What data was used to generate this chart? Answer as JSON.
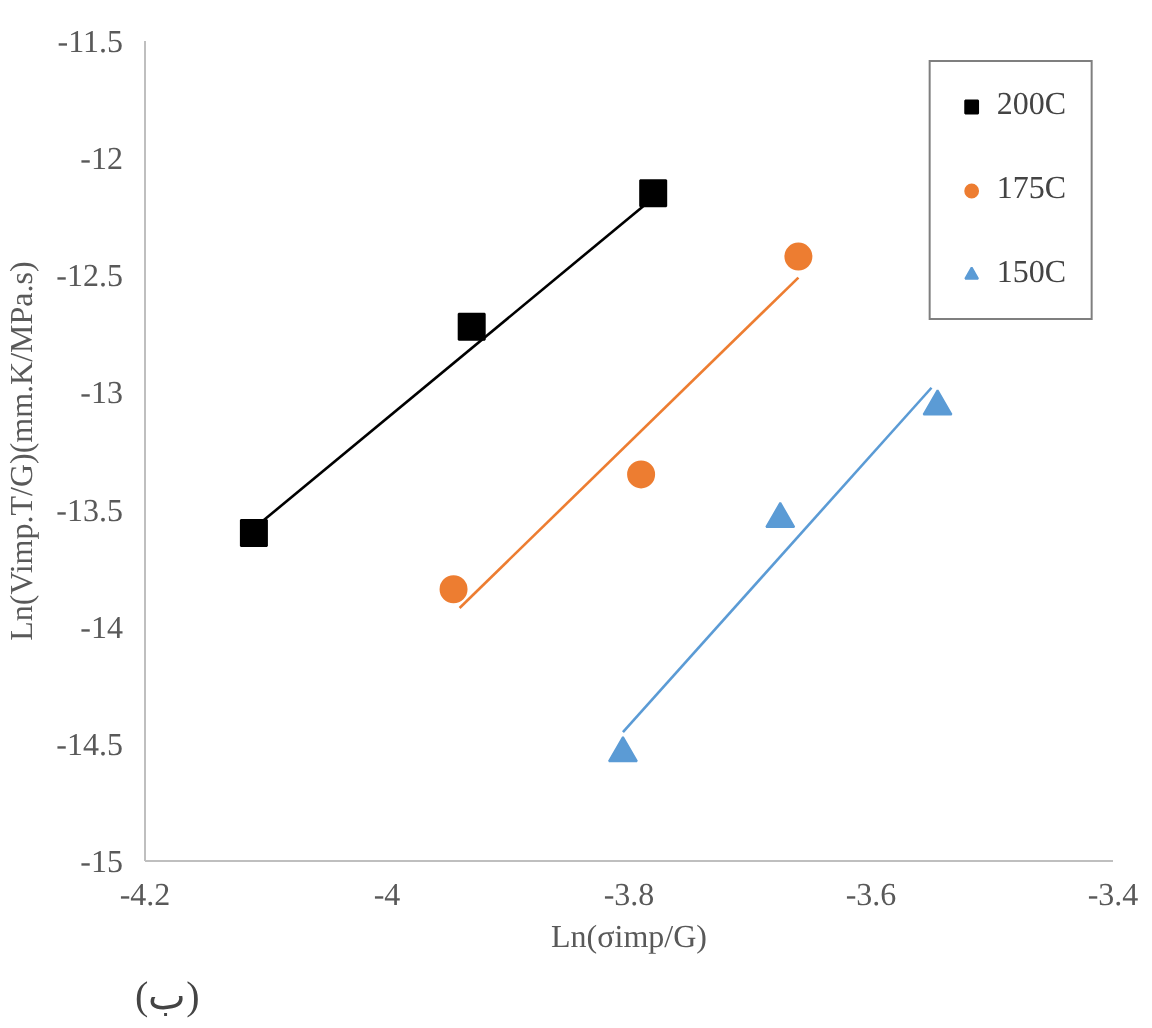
{
  "chart_data": {
    "type": "scatter",
    "xlabel": "Ln(σimp/G)",
    "ylabel": "Ln(Vimp.T/G)(mm.K/MPa.s)",
    "xlim": [
      -4.2,
      -3.4
    ],
    "xticks": [
      -4.2,
      -4,
      -3.8,
      -3.6,
      -3.4
    ],
    "ylim": [
      -15,
      -11.5
    ],
    "yticks": [
      -15,
      -14.5,
      -14,
      -13.5,
      -13,
      -12.5,
      -12,
      -11.5
    ],
    "grid": false,
    "legend": "top right",
    "annotations": [
      "(ب)"
    ],
    "series": [
      {
        "name": "200C",
        "color": "#000000",
        "marker": "square",
        "x": [
          -4.11,
          -3.93,
          -3.78
        ],
        "values": [
          -13.6,
          -12.72,
          -12.15
        ]
      },
      {
        "name": "175C",
        "color": "#ed7d31",
        "marker": "circle",
        "x": [
          -3.945,
          -3.79,
          -3.66
        ],
        "values": [
          -13.84,
          -13.35,
          -12.42
        ]
      },
      {
        "name": "150C",
        "color": "#5b9bd5",
        "marker": "triangle",
        "x": [
          -3.805,
          -3.675,
          -3.545
        ],
        "values": [
          -14.54,
          -13.54,
          -13.06
        ]
      },
      {
        "type": "line",
        "color": "#000000",
        "x": [
          -4.11,
          -3.78
        ],
        "values": [
          -13.58,
          -12.17
        ]
      },
      {
        "type": "line",
        "color": "#ed7d31",
        "x": [
          -3.94,
          -3.66
        ],
        "values": [
          -13.92,
          -12.51
        ]
      },
      {
        "type": "line",
        "color": "#5b9bd5",
        "x": [
          -3.805,
          -3.55
        ],
        "values": [
          -14.45,
          -12.98
        ]
      }
    ]
  }
}
